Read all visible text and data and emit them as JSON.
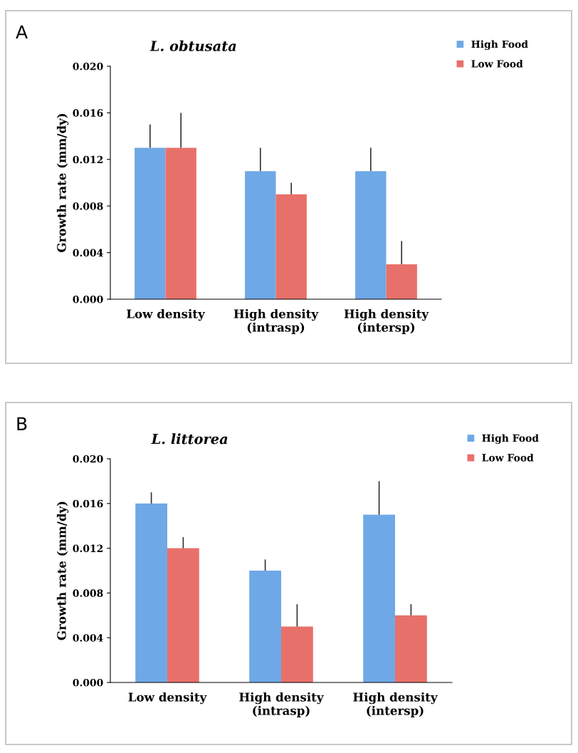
{
  "chart_data": [
    {
      "type": "bar",
      "title": "L. obtusata",
      "ylabel": "Growth rate (mm/dy)",
      "annotations": [
        "A"
      ],
      "categories": [
        "Low density",
        "High density\n(intrasp)",
        "High density\n(intersp)"
      ],
      "series": [
        {
          "name": "High Food",
          "color": "#6fa8e6",
          "values": [
            0.013,
            0.011,
            0.011
          ],
          "errors": [
            [
              0.013,
              0.015
            ],
            [
              0.011,
              0.013
            ],
            [
              0.011,
              0.013
            ]
          ]
        },
        {
          "name": "Low Food",
          "color": "#e8706a",
          "values": [
            0.013,
            0.009,
            0.003
          ],
          "errors": [
            [
              0.013,
              0.016
            ],
            [
              0.009,
              0.01
            ],
            [
              0.003,
              0.005
            ]
          ]
        }
      ],
      "ylim": [
        0,
        0.02
      ],
      "yticks": [
        {
          "value": 0,
          "label": "0.000"
        },
        {
          "value": 0.004,
          "label": "0.004"
        },
        {
          "value": 0.008,
          "label": "0.008"
        },
        {
          "value": 0.012,
          "label": "0.012"
        },
        {
          "value": 0.016,
          "label": "0.016"
        },
        {
          "value": 0.02,
          "label": "0.020"
        }
      ],
      "legend": "top right",
      "grid": false
    },
    {
      "type": "bar",
      "title": "L. littorea",
      "ylabel": "Growth rate (mm/dy)",
      "annotations": [
        "B"
      ],
      "categories": [
        "Low density",
        "High density\n(intrasp)",
        "High density\n(intersp)"
      ],
      "series": [
        {
          "name": "High Food",
          "color": "#6fa8e6",
          "values": [
            0.016,
            0.01,
            0.015
          ],
          "errors": [
            [
              0.016,
              0.017
            ],
            [
              0.01,
              0.011
            ],
            [
              0.015,
              0.018
            ]
          ]
        },
        {
          "name": "Low Food",
          "color": "#e8706a",
          "values": [
            0.012,
            0.005,
            0.006
          ],
          "errors": [
            [
              0.012,
              0.013
            ],
            [
              0.005,
              0.007
            ],
            [
              0.006,
              0.007
            ]
          ]
        }
      ],
      "ylim": [
        0,
        0.02
      ],
      "yticks": [
        {
          "value": 0,
          "label": "0.000"
        },
        {
          "value": 0.004,
          "label": "0.004"
        },
        {
          "value": 0.008,
          "label": "0.008"
        },
        {
          "value": 0.012,
          "label": "0.012"
        },
        {
          "value": 0.016,
          "label": "0.016"
        },
        {
          "value": 0.02,
          "label": "0.020"
        }
      ],
      "legend": "top right",
      "grid": false
    }
  ]
}
